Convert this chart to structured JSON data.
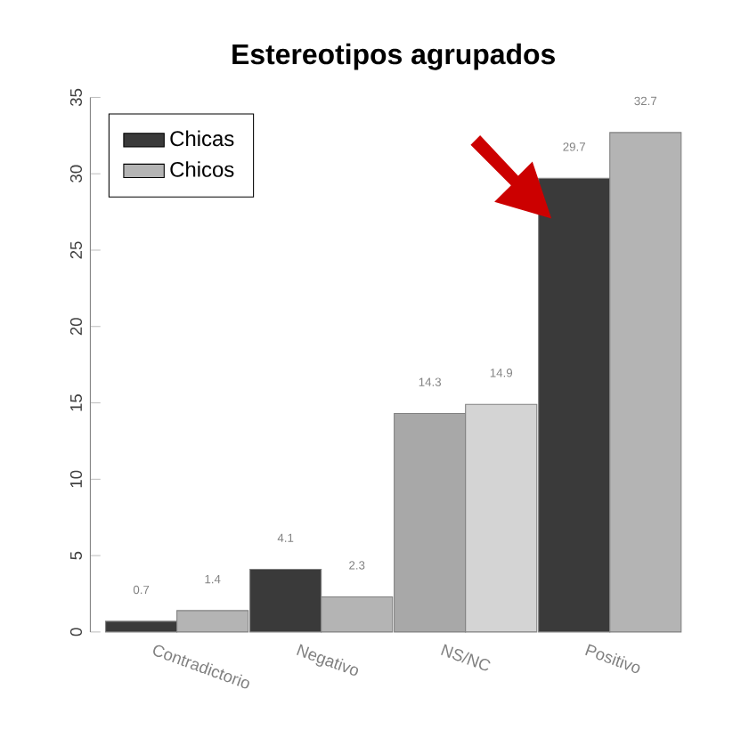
{
  "chart_data": {
    "type": "bar",
    "title": "Estereotipos agrupados",
    "categories": [
      "Contradictorio",
      "Negativo",
      "NS/NC",
      "Positivo"
    ],
    "series": [
      {
        "name": "Chicas",
        "color": "#3a3a3a",
        "colors": [
          "#3a3a3a",
          "#3a3a3a",
          "#a8a8a8",
          "#3a3a3a"
        ],
        "values": [
          0.7,
          4.1,
          14.3,
          29.7
        ],
        "value_labels": [
          "0.7",
          "4.1",
          "14.3",
          "29.7"
        ]
      },
      {
        "name": "Chicos",
        "color": "#b4b4b4",
        "colors": [
          "#b4b4b4",
          "#b4b4b4",
          "#d4d4d4",
          "#b4b4b4"
        ],
        "values": [
          1.4,
          2.3,
          14.9,
          32.7
        ],
        "value_labels": [
          "1.4",
          "2.3",
          "14.9",
          "32.7"
        ]
      }
    ],
    "ylim": [
      0,
      35
    ],
    "yticks": [
      0,
      5,
      10,
      15,
      20,
      25,
      30,
      35
    ],
    "legend": "top left",
    "grid": false
  }
}
